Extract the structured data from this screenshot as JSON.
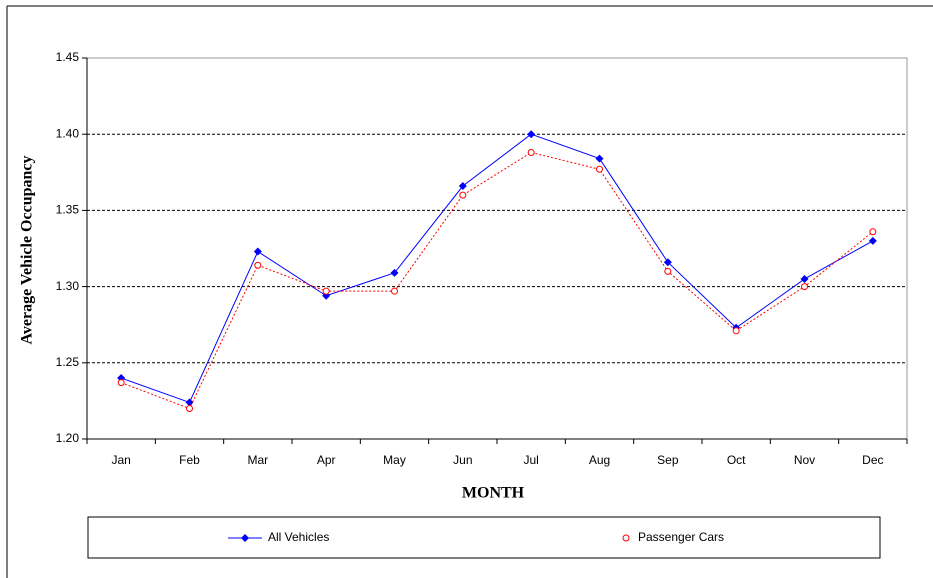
{
  "chart_data": {
    "type": "line",
    "y_label": "Average Vehicle Occupancy",
    "x_label": "MONTH",
    "categories": [
      "Jan",
      "Feb",
      "Mar",
      "Apr",
      "May",
      "Jun",
      "Jul",
      "Aug",
      "Sep",
      "Oct",
      "Nov",
      "Dec"
    ],
    "series": [
      {
        "name": "All Vehicles",
        "color": "#0000ff",
        "marker": "diamond",
        "line": "solid",
        "values": [
          1.24,
          1.224,
          1.323,
          1.294,
          1.309,
          1.366,
          1.4,
          1.384,
          1.316,
          1.273,
          1.305,
          1.33
        ]
      },
      {
        "name": "Passenger Cars",
        "color": "#ff0000",
        "marker": "circle",
        "line": "dotted",
        "values": [
          1.237,
          1.22,
          1.314,
          1.297,
          1.297,
          1.36,
          1.388,
          1.377,
          1.31,
          1.271,
          1.3,
          1.336
        ]
      }
    ],
    "ylim": [
      1.2,
      1.45
    ],
    "yticks": [
      {
        "value": 1.2,
        "label": "1.20"
      },
      1.25,
      {
        "value": 1.3,
        "label": "1.30"
      },
      1.35,
      {
        "value": 1.4,
        "label": "1.40"
      },
      1.45
    ],
    "grid": true,
    "legend": "bottom"
  }
}
